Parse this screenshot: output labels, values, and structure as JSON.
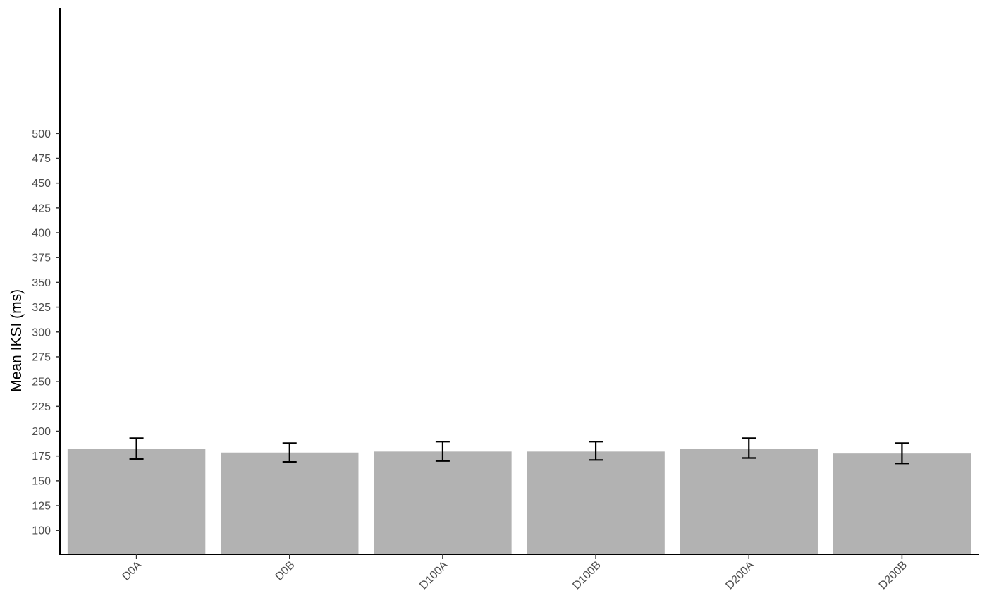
{
  "chart_data": {
    "type": "bar",
    "title": "",
    "xlabel": "",
    "ylabel": "Mean IKSI (ms)",
    "categories": [
      "D0A",
      "D0B",
      "D100A",
      "D100B",
      "D200A",
      "D200B"
    ],
    "values": [
      182.5,
      178.5,
      179.5,
      179.5,
      182.5,
      177.5
    ],
    "error_low": [
      172,
      169,
      170,
      171,
      173,
      167.5
    ],
    "error_high": [
      193,
      188,
      189.5,
      189.5,
      193,
      188
    ],
    "ylim": [
      76,
      626
    ],
    "yticks": [
      100,
      125,
      150,
      175,
      200,
      225,
      250,
      275,
      300,
      325,
      350,
      375,
      400,
      425,
      450,
      475,
      500
    ],
    "yticklabels": [
      "100",
      "125",
      "150",
      "175",
      "200",
      "225",
      "250",
      "275",
      "300",
      "325",
      "350",
      "375",
      "400",
      "425",
      "450",
      "475",
      "500"
    ],
    "grid": false,
    "bar_color": "#b2b2b2",
    "error_bar_color": "#000000"
  }
}
